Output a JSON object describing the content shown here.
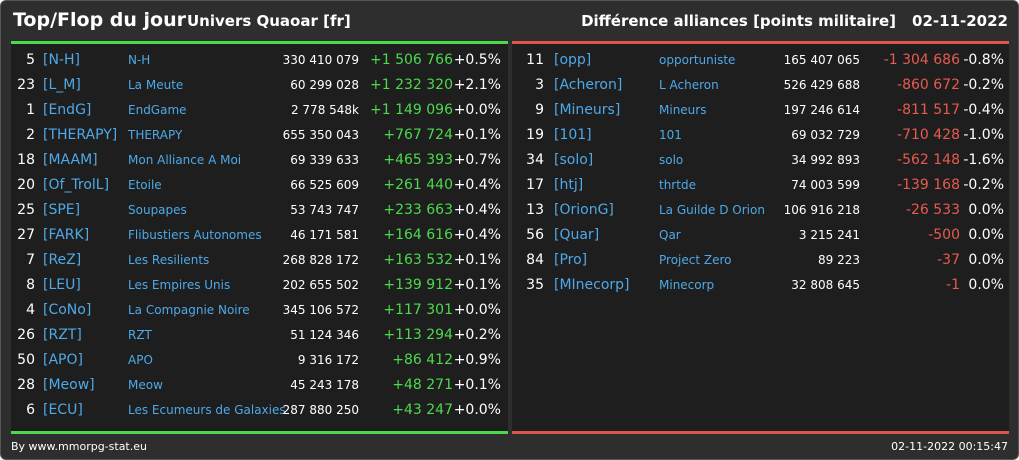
{
  "header": {
    "title": "Top/Flop du jour",
    "subtitle": "Univers Quaoar [fr]",
    "section_title": "Différence alliances [points militaire]",
    "date": "02-11-2022"
  },
  "colors": {
    "positive": "#4cd94c",
    "negative": "#e85a4f",
    "link": "#4ea9e8",
    "panel_bg": "#1e1e1e"
  },
  "top": [
    {
      "rank": "5",
      "tag": "[N-H]",
      "name": "N-H",
      "points": "330 410 079",
      "diff": "+1 506 766",
      "pct": "+0.5%"
    },
    {
      "rank": "23",
      "tag": "[L_M]",
      "name": "La Meute",
      "points": "60 299 028",
      "diff": "+1 232 320",
      "pct": "+2.1%"
    },
    {
      "rank": "1",
      "tag": "[EndG]",
      "name": "EndGame",
      "points": "2 778 548k",
      "diff": "+1 149 096",
      "pct": "+0.0%"
    },
    {
      "rank": "2",
      "tag": "[THERAPY]",
      "name": "THERAPY",
      "points": "655 350 043",
      "diff": "+767 724",
      "pct": "+0.1%"
    },
    {
      "rank": "18",
      "tag": "[MAAM]",
      "name": "Mon Alliance A Moi",
      "points": "69 339 633",
      "diff": "+465 393",
      "pct": "+0.7%"
    },
    {
      "rank": "20",
      "tag": "[Of_TrolL]",
      "name": "Etoile",
      "points": "66 525 609",
      "diff": "+261 440",
      "pct": "+0.4%"
    },
    {
      "rank": "25",
      "tag": "[SPE]",
      "name": "Soupapes",
      "points": "53 743 747",
      "diff": "+233 663",
      "pct": "+0.4%"
    },
    {
      "rank": "27",
      "tag": "[FARK]",
      "name": "Flibustiers Autonomes",
      "points": "46 171 581",
      "diff": "+164 616",
      "pct": "+0.4%"
    },
    {
      "rank": "7",
      "tag": "[ReZ]",
      "name": "Les Resilients",
      "points": "268 828 172",
      "diff": "+163 532",
      "pct": "+0.1%"
    },
    {
      "rank": "8",
      "tag": "[LEU]",
      "name": "Les Empires Unis",
      "points": "202 655 502",
      "diff": "+139 912",
      "pct": "+0.1%"
    },
    {
      "rank": "4",
      "tag": "[CoNo]",
      "name": "La Compagnie Noire",
      "points": "345 106 572",
      "diff": "+117 301",
      "pct": "+0.0%"
    },
    {
      "rank": "26",
      "tag": "[RZT]",
      "name": "RZT",
      "points": "51 124 346",
      "diff": "+113 294",
      "pct": "+0.2%"
    },
    {
      "rank": "50",
      "tag": "[APO]",
      "name": "APO",
      "points": "9 316 172",
      "diff": "+86 412",
      "pct": "+0.9%"
    },
    {
      "rank": "28",
      "tag": "[Meow]",
      "name": "Meow",
      "points": "45 243 178",
      "diff": "+48 271",
      "pct": "+0.1%"
    },
    {
      "rank": "6",
      "tag": "[ECU]",
      "name": "Les Ecumeurs de Galaxies",
      "points": "287 880 250",
      "diff": "+43 247",
      "pct": "+0.0%"
    }
  ],
  "flop": [
    {
      "rank": "11",
      "tag": "[opp]",
      "name": "opportuniste",
      "points": "165 407 065",
      "diff": "-1 304 686",
      "pct": "-0.8%"
    },
    {
      "rank": "3",
      "tag": "[Acheron]",
      "name": "L Acheron",
      "points": "526 429 688",
      "diff": "-860 672",
      "pct": "-0.2%"
    },
    {
      "rank": "9",
      "tag": "[Mineurs]",
      "name": "Mineurs",
      "points": "197 246 614",
      "diff": "-811 517",
      "pct": "-0.4%"
    },
    {
      "rank": "19",
      "tag": "[101]",
      "name": "101",
      "points": "69 032 729",
      "diff": "-710 428",
      "pct": "-1.0%"
    },
    {
      "rank": "34",
      "tag": "[solo]",
      "name": "solo",
      "points": "34 992 893",
      "diff": "-562 148",
      "pct": "-1.6%"
    },
    {
      "rank": "17",
      "tag": "[htj]",
      "name": "thrtde",
      "points": "74 003 599",
      "diff": "-139 168",
      "pct": "-0.2%"
    },
    {
      "rank": "13",
      "tag": "[OrionG]",
      "name": "La Guilde D Orion",
      "points": "106 916 218",
      "diff": "-26 533",
      "pct": "0.0%"
    },
    {
      "rank": "56",
      "tag": "[Quar]",
      "name": "Qar",
      "points": "3 215 241",
      "diff": "-500",
      "pct": "0.0%"
    },
    {
      "rank": "84",
      "tag": "[Pro]",
      "name": "Project Zero",
      "points": "89 223",
      "diff": "-37",
      "pct": "0.0%"
    },
    {
      "rank": "35",
      "tag": "[MInecorp]",
      "name": "Minecorp",
      "points": "32 808 645",
      "diff": "-1",
      "pct": "0.0%"
    }
  ],
  "footer": {
    "source": "By www.mmorpg-stat.eu",
    "timestamp": "02-11-2022 00:15:47"
  }
}
